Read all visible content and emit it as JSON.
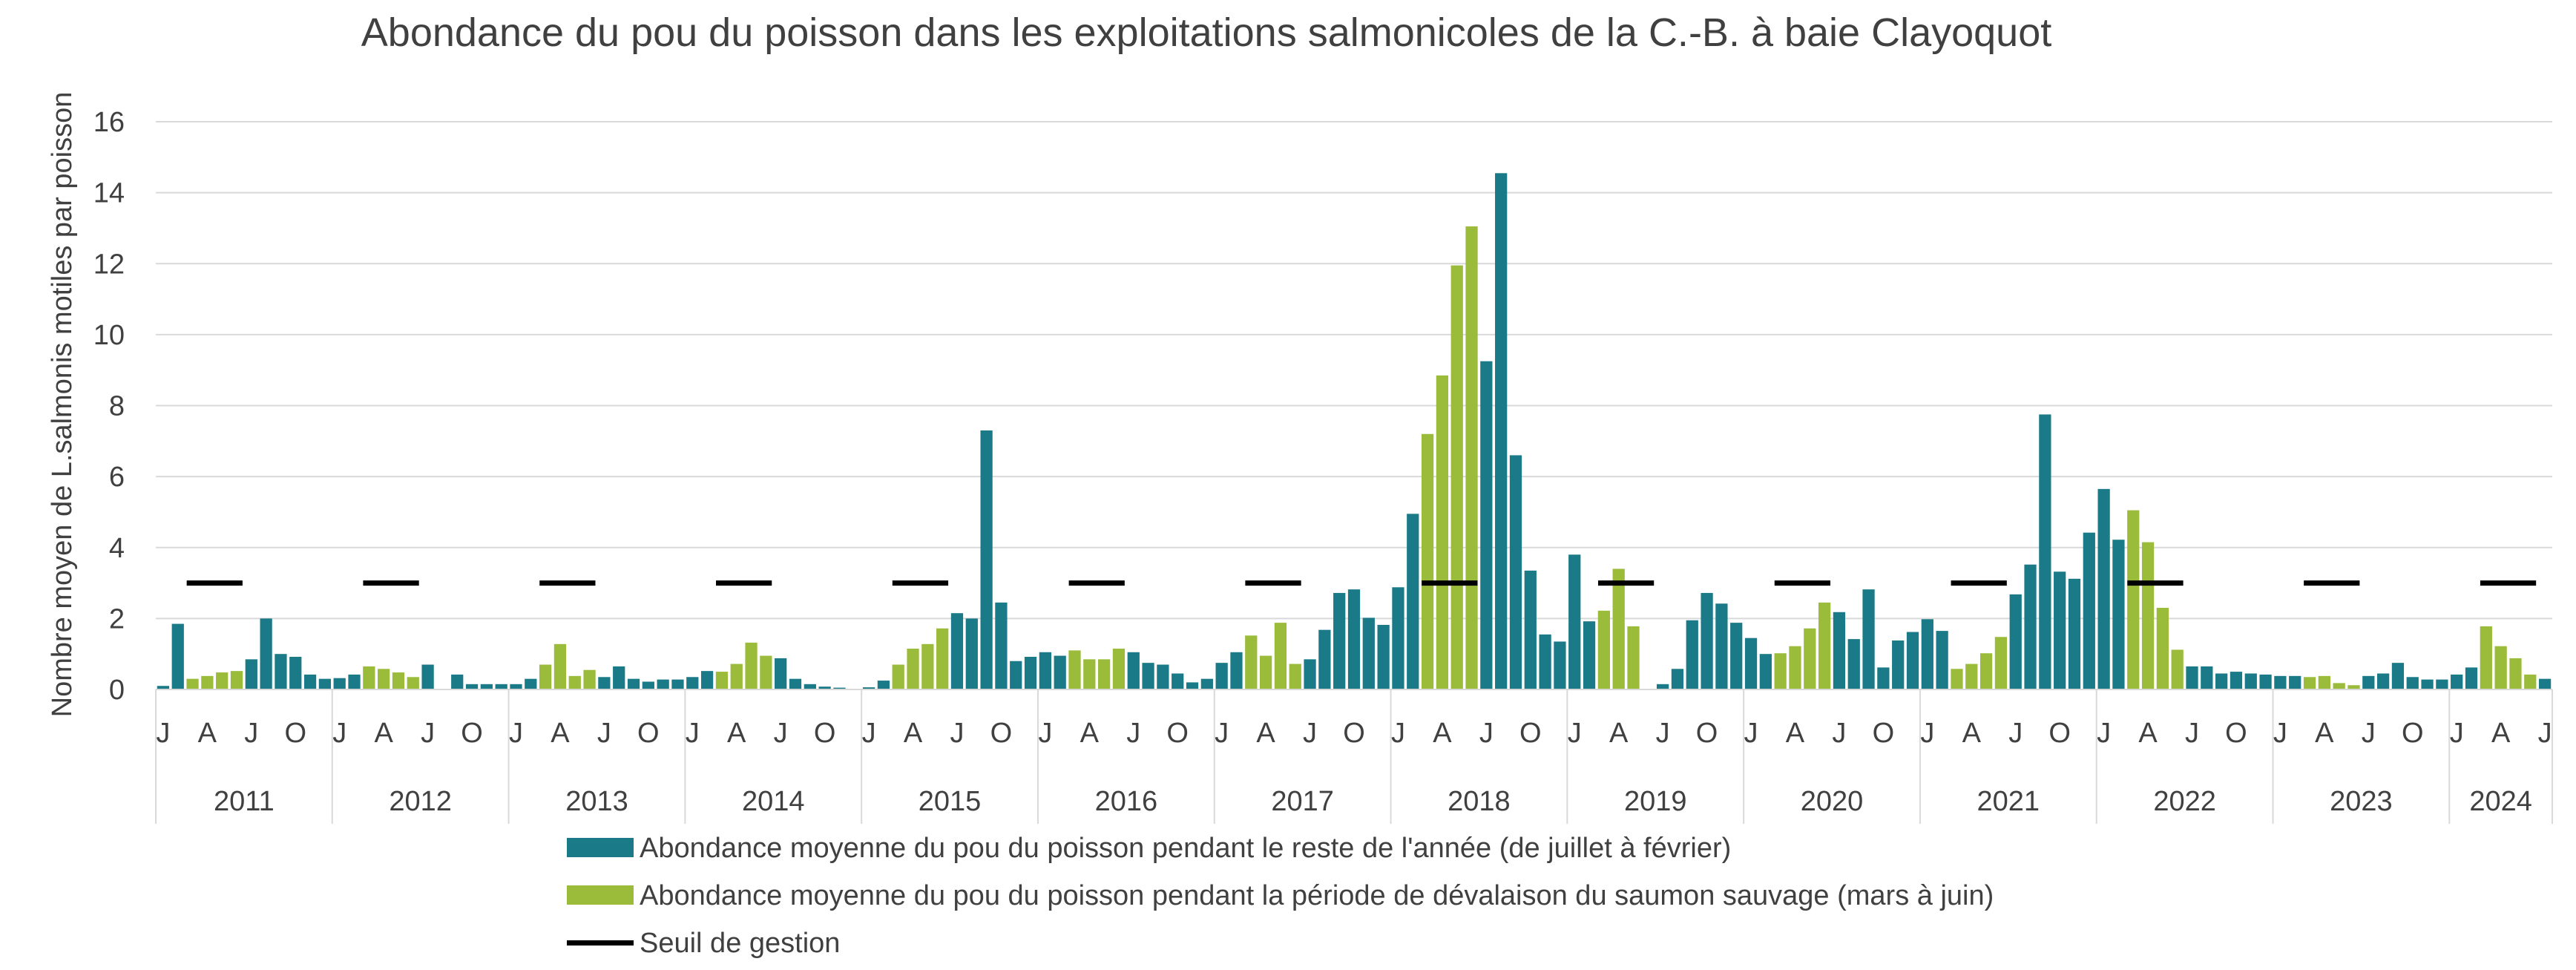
{
  "chart_data": {
    "type": "bar",
    "title": "Abondance du pou du poisson dans les exploitations salmonicoles de la C.-B. à baie Clayoquot",
    "ylabel": "Nombre moyen de L.salmonis motiles par poisson",
    "xlabel": "",
    "ylim": [
      0,
      16
    ],
    "yticks": [
      "0",
      "2",
      "4",
      "6",
      "8",
      "10",
      "12",
      "14",
      "16"
    ],
    "grid": "horizontal",
    "legend_position": "bottom",
    "month_tick_labels": [
      "J",
      "A",
      "J",
      "O"
    ],
    "years": [
      "2011",
      "2012",
      "2013",
      "2014",
      "2015",
      "2016",
      "2017",
      "2018",
      "2019",
      "2020",
      "2021",
      "2022",
      "2023",
      "2024"
    ],
    "threshold": 3,
    "colors": {
      "rest_of_year": "#1b7a87",
      "outmigration": "#9bbb3b",
      "threshold": "#000000"
    },
    "series": [
      {
        "name": "Abondance moyenne du pou du poisson pendant le reste de l'année (de juillet à février)",
        "color_key": "rest_of_year"
      },
      {
        "name": "Abondance moyenne du pou du poisson pendant la période de dévalaison du saumon sauvage (mars à juin)",
        "color_key": "outmigration"
      },
      {
        "name": "Seuil de gestion",
        "color_key": "threshold"
      }
    ],
    "monthly_values": [
      [
        0.1,
        1.85,
        0.3,
        0.38,
        0.48,
        0.52,
        0.85,
        2.0,
        1.0,
        0.92,
        0.42,
        0.3
      ],
      [
        0.32,
        0.42,
        0.65,
        0.58,
        0.48,
        0.35,
        0.7,
        0.0,
        0.42,
        0.15,
        0.15,
        0.15
      ],
      [
        0.15,
        0.3,
        0.7,
        1.28,
        0.38,
        0.55,
        0.35,
        0.65,
        0.3,
        0.22,
        0.28,
        0.28
      ],
      [
        0.35,
        0.52,
        0.5,
        0.72,
        1.32,
        0.95,
        0.88,
        0.3,
        0.15,
        0.08,
        0.05,
        0.0
      ],
      [
        0.06,
        0.25,
        0.7,
        1.15,
        1.28,
        1.72,
        2.15,
        2.0,
        7.3,
        2.45,
        0.8,
        0.92
      ],
      [
        1.05,
        0.95,
        1.1,
        0.85,
        0.85,
        1.15,
        1.05,
        0.75,
        0.7,
        0.45,
        0.2,
        0.3
      ],
      [
        0.75,
        1.05,
        1.52,
        0.95,
        1.88,
        0.72,
        0.85,
        1.68,
        2.72,
        2.82,
        2.02,
        1.82
      ],
      [
        2.88,
        4.95,
        7.2,
        8.85,
        11.95,
        13.05,
        9.25,
        14.55,
        6.6,
        3.35,
        1.55,
        1.35
      ],
      [
        3.8,
        1.92,
        2.22,
        3.4,
        1.78,
        0.0,
        0.15,
        0.58,
        1.95,
        2.72,
        2.42,
        1.88
      ],
      [
        1.45,
        1.0,
        1.02,
        1.22,
        1.72,
        2.45,
        2.18,
        1.42,
        2.82,
        0.62,
        1.38,
        1.62
      ],
      [
        1.98,
        1.65,
        0.58,
        0.72,
        1.02,
        1.48,
        2.68,
        3.52,
        7.75,
        3.32,
        3.12,
        4.42
      ],
      [
        5.65,
        4.22,
        5.05,
        4.15,
        2.3,
        1.12,
        0.65,
        0.65,
        0.45,
        0.5,
        0.45,
        0.42
      ],
      [
        0.38,
        0.38,
        0.35,
        0.38,
        0.18,
        0.12,
        0.38,
        0.45,
        0.75,
        0.35,
        0.28,
        0.28
      ],
      [
        0.42,
        0.62,
        1.78,
        1.22,
        0.88,
        0.42,
        0.3
      ]
    ]
  }
}
